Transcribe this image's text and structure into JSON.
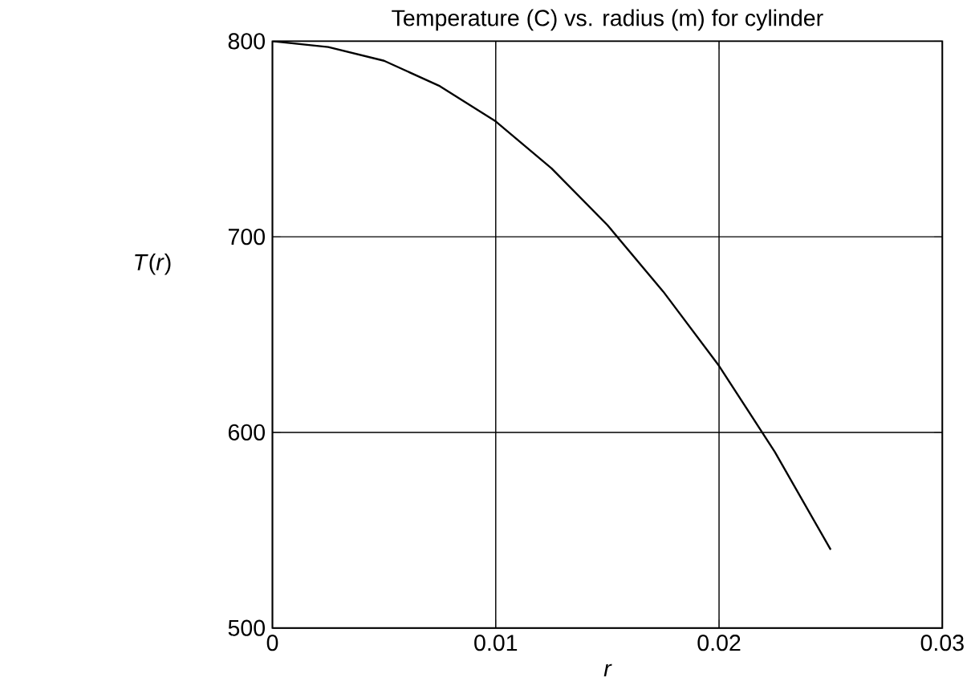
{
  "chart_data": {
    "type": "line",
    "title": "Temperature (C) vs. radius (m) for cylinder",
    "xlabel": "r",
    "ylabel": "*T*(*r*)",
    "x": [
      0,
      0.0025,
      0.005,
      0.0075,
      0.01,
      0.0125,
      0.015,
      0.0175,
      0.02,
      0.0225,
      0.025
    ],
    "series": [
      {
        "color": "#000000",
        "values": [
          800,
          797,
          790,
          777,
          759,
          735,
          706,
          672,
          634,
          590,
          540
        ]
      }
    ],
    "xlim": [
      0,
      0.03
    ],
    "ylim": [
      500,
      800
    ],
    "xticks": [
      0,
      0.01,
      0.02,
      0.03
    ],
    "yticks": [
      500,
      600,
      700,
      800
    ],
    "grid": true,
    "marker": "none",
    "line_style": "solid"
  }
}
